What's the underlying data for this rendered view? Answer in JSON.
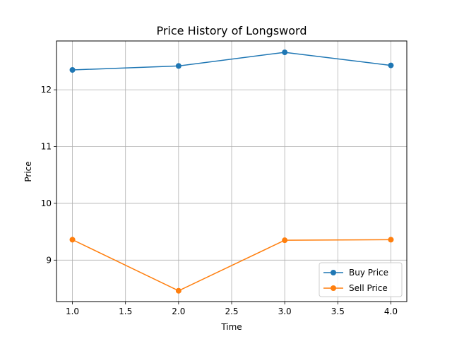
{
  "chart_data": {
    "type": "line",
    "title": "Price History of Longsword",
    "xlabel": "Time",
    "ylabel": "Price",
    "xlim": [
      0.85,
      4.15
    ],
    "ylim": [
      8.27,
      12.86
    ],
    "x_ticks": [
      "1.0",
      "1.5",
      "2.0",
      "2.5",
      "3.0",
      "3.5",
      "4.0"
    ],
    "y_ticks": [
      "9",
      "10",
      "11",
      "12"
    ],
    "grid": true,
    "legend_position": "lower-right",
    "x": [
      1.0,
      2.0,
      3.0,
      4.0
    ],
    "series": [
      {
        "name": "Buy Price",
        "color": "#1f77b4",
        "values": [
          12.35,
          12.42,
          12.66,
          12.43
        ]
      },
      {
        "name": "Sell Price",
        "color": "#ff7f0e",
        "values": [
          9.36,
          8.46,
          9.35,
          9.36
        ]
      }
    ]
  }
}
